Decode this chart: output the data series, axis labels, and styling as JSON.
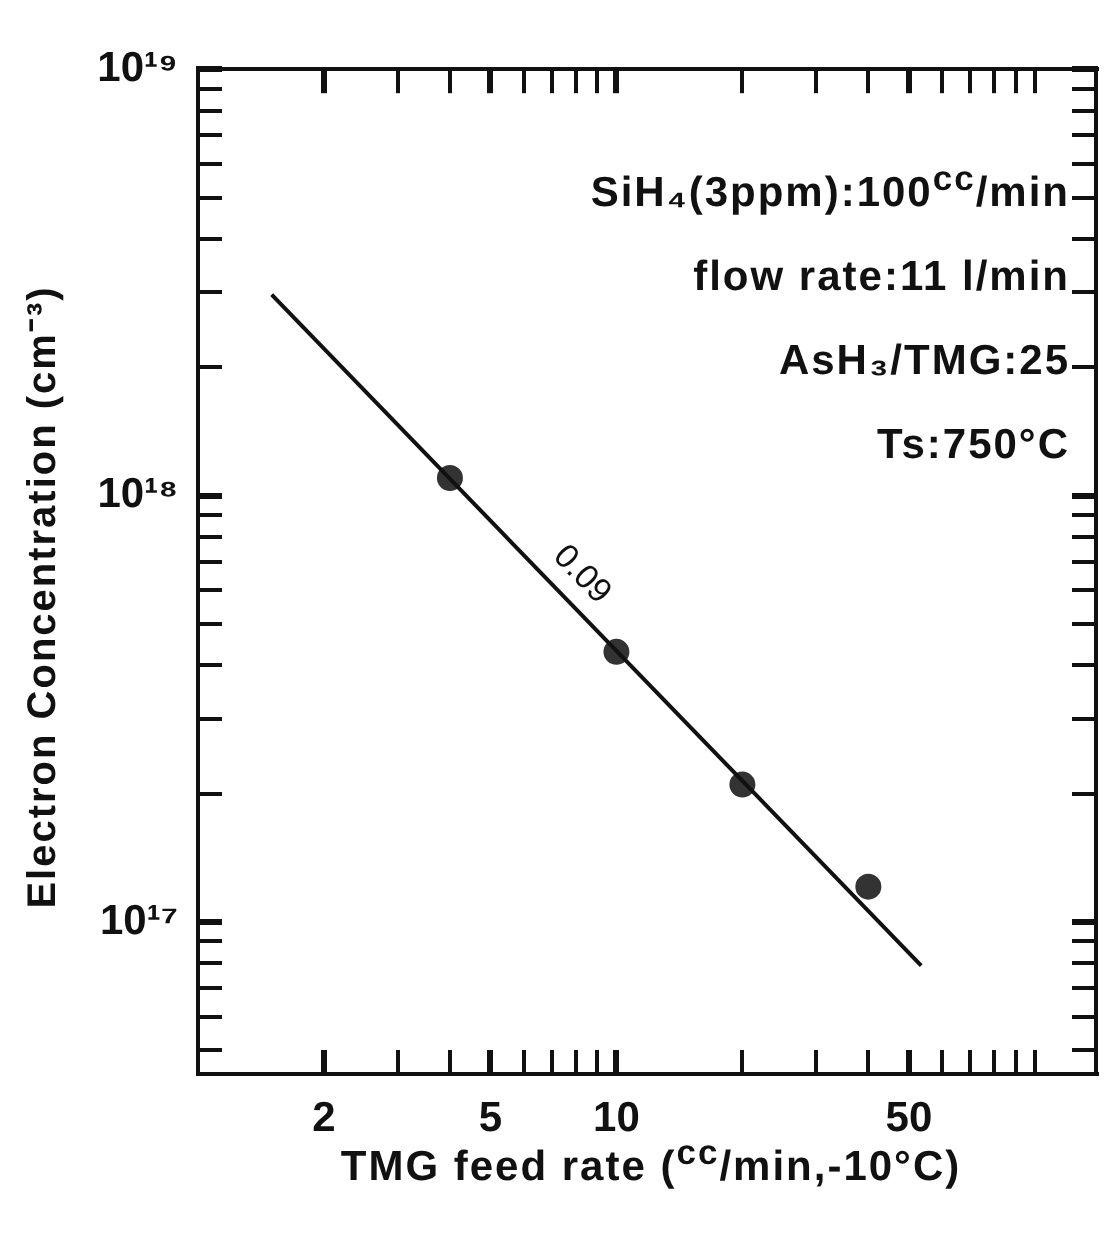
{
  "chart_data": {
    "type": "scatter",
    "xlabel": "TMG feed rate ($^{cc}$/min,-10°C)",
    "ylabel": "Electron Concentration (cm⁻³)",
    "annotations": [
      "SiH₄(3ppm):100$^{cc}$/min",
      "flow rate:11 l/min",
      "AsH₃/TMG:25",
      "Ts:750°C",
      {
        "text": "0.09",
        "x": 7.4,
        "y": 5.85e+17
      }
    ],
    "series": [
      {
        "type": "line",
        "color": "#111111",
        "marker": "none",
        "x": [
          1.5,
          53.5
        ],
        "values": [
          2.96e+18,
          7.9e+16
        ]
      },
      {
        "color": "#333333",
        "marker": "circle",
        "x": [
          4,
          10,
          20,
          40
        ],
        "values": [
          1.1e+18,
          4.3e+17,
          2.1e+17,
          1.21e+17
        ]
      }
    ],
    "log": "xy",
    "xlim": [
      1,
      140
    ],
    "ylim": [
      4.4e+16,
      1e+19
    ],
    "xticks": [
      2,
      {
        "value": 3,
        "label": null
      },
      {
        "value": 4,
        "label": null
      },
      5,
      {
        "value": 6,
        "label": null
      },
      {
        "value": 7,
        "label": null
      },
      {
        "value": 8,
        "label": null
      },
      {
        "value": 9,
        "label": null
      },
      10,
      {
        "value": 20,
        "label": null
      },
      {
        "value": 30,
        "label": null
      },
      {
        "value": 40,
        "label": null
      },
      50,
      {
        "value": 60,
        "label": null
      },
      {
        "value": 70,
        "label": null
      },
      {
        "value": 80,
        "label": null
      },
      {
        "value": 90,
        "label": null
      },
      {
        "value": 100,
        "label": null
      }
    ],
    "yticks": [
      {
        "value": 5e+16,
        "label": null
      },
      {
        "value": 6e+16,
        "label": null
      },
      {
        "value": 7e+16,
        "label": null
      },
      {
        "value": 8e+16,
        "label": null
      },
      {
        "value": 9e+16,
        "label": null
      },
      {
        "value": 1e+17,
        "label": "10¹⁷"
      },
      {
        "value": 2e+17,
        "label": null
      },
      {
        "value": 3e+17,
        "label": null
      },
      {
        "value": 4e+17,
        "label": null
      },
      {
        "value": 5e+17,
        "label": null
      },
      {
        "value": 6e+17,
        "label": null
      },
      {
        "value": 7e+17,
        "label": null
      },
      {
        "value": 8e+17,
        "label": null
      },
      {
        "value": 9e+17,
        "label": null
      },
      {
        "value": 1e+18,
        "label": "10¹⁸"
      },
      {
        "value": 2e+18,
        "label": null
      },
      {
        "value": 3e+18,
        "label": null
      },
      {
        "value": 4e+18,
        "label": null
      },
      {
        "value": 5e+18,
        "label": null
      },
      {
        "value": 6e+18,
        "label": null
      },
      {
        "value": 7e+18,
        "label": null
      },
      {
        "value": 8e+18,
        "label": null
      },
      {
        "value": 9e+18,
        "label": null
      },
      {
        "value": 1e+19,
        "label": "10¹⁹"
      }
    ]
  }
}
